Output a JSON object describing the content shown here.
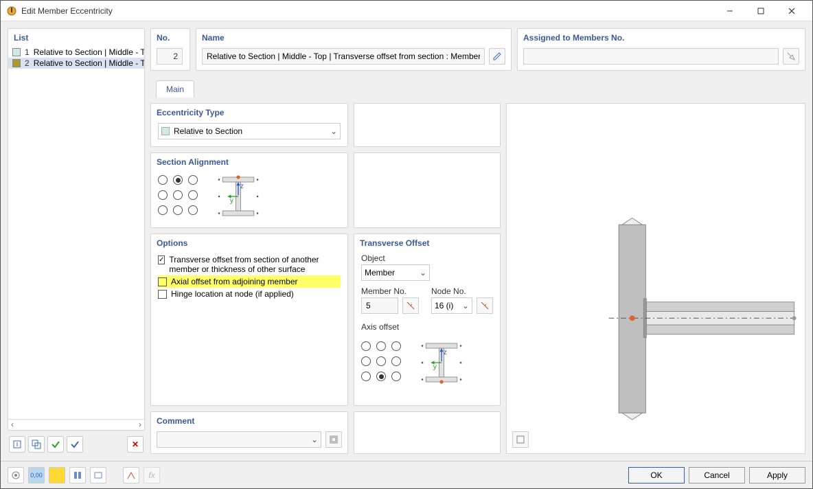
{
  "window": {
    "title": "Edit Member Eccentricity"
  },
  "list": {
    "header": "List",
    "items": [
      {
        "num": "1",
        "label": "Relative to Section | Middle - To",
        "color": "#cfe8e8",
        "selected": false
      },
      {
        "num": "2",
        "label": "Relative to Section | Middle - To",
        "color": "#aa9a2e",
        "selected": true
      }
    ]
  },
  "no": {
    "header": "No.",
    "value": "2"
  },
  "name": {
    "header": "Name",
    "value": "Relative to Section | Middle - Top | Transverse offset from section : Member No"
  },
  "assigned": {
    "header": "Assigned to Members No.",
    "value": ""
  },
  "tabs": {
    "main": "Main"
  },
  "ecc": {
    "header": "Eccentricity Type",
    "value": "Relative to Section"
  },
  "section": {
    "header": "Section Alignment",
    "selected_index": 1,
    "beam": {
      "flange_color": "#e0e0e0",
      "web_color": "#e0e0e0",
      "edge_color": "#888",
      "z_color": "#2a5bc8",
      "y_color": "#2e9e2e",
      "dot_color": "#555",
      "top_dot": "#e06030"
    }
  },
  "options": {
    "header": "Options",
    "items": [
      {
        "label": "Transverse offset from section of another member or thickness of other surface",
        "checked": true,
        "highlight": false
      },
      {
        "label": "Axial offset from adjoining member",
        "checked": false,
        "highlight": true
      },
      {
        "label": "Hinge location at node (if applied)",
        "checked": false,
        "highlight": false
      }
    ]
  },
  "trans": {
    "header": "Transverse Offset",
    "object_label": "Object",
    "object_value": "Member",
    "member_label": "Member No.",
    "member_value": "5",
    "node_label": "Node No.",
    "node_value": "16 (i)",
    "axis_label": "Axis offset",
    "axis_selected_index": 7
  },
  "comment": {
    "header": "Comment",
    "value": ""
  },
  "buttons": {
    "ok": "OK",
    "cancel": "Cancel",
    "apply": "Apply"
  },
  "preview": {
    "column_color": "#bfbfbf",
    "beam_color": "#d0d0d0",
    "edge": "#888",
    "dot": "#e06030",
    "axis": "#555"
  }
}
